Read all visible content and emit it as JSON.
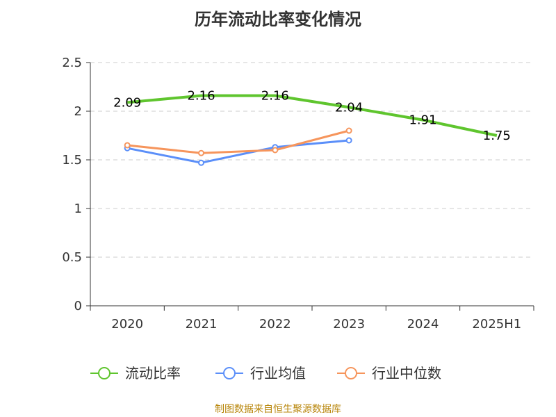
{
  "chart_data": {
    "type": "line",
    "title": "历年流动比率变化情况",
    "categories": [
      "2020",
      "2021",
      "2022",
      "2023",
      "2024",
      "2025H1"
    ],
    "ylim": [
      0,
      2.5
    ],
    "yticks": [
      "0",
      "0.5",
      "1",
      "1.5",
      "2",
      "2.5"
    ],
    "grid": true,
    "legend_position": "bottom",
    "series": [
      {
        "name": "流动比率",
        "values": [
          2.09,
          2.16,
          2.16,
          2.04,
          1.91,
          1.75
        ],
        "color": "#5fc52e",
        "labels": [
          "2.09",
          "2.16",
          "2.16",
          "2.04",
          "1.91",
          "1.75"
        ]
      },
      {
        "name": "行业均值",
        "values": [
          1.62,
          1.47,
          1.63,
          1.7,
          null,
          null
        ],
        "color": "#5b8ff9"
      },
      {
        "name": "行业中位数",
        "values": [
          1.65,
          1.57,
          1.6,
          1.8,
          null,
          null
        ],
        "color": "#f6955c"
      }
    ]
  },
  "source_text": "制图数据来自恒生聚源数据库"
}
